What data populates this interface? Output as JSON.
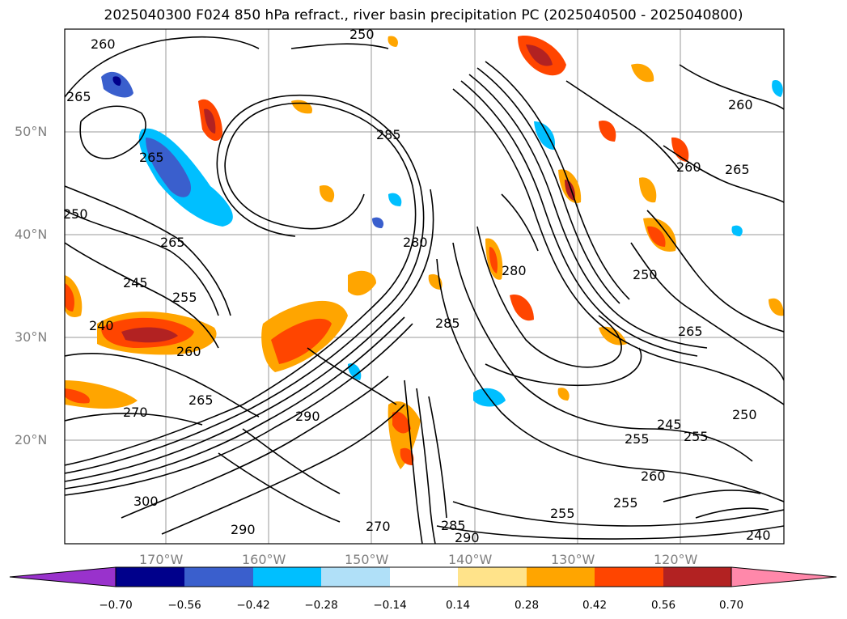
{
  "title": "2025040300 F024 850 hPa refract., river basin precipitation PC (2025040500 - 2025040800)",
  "axes": {
    "lat_labels": [
      "50°N",
      "40°N",
      "30°N",
      "20°N"
    ],
    "lon_labels": [
      "170°W",
      "160°W",
      "150°W",
      "140°W",
      "130°W",
      "120°W"
    ],
    "label_color": "#808080"
  },
  "contour_labels": [
    "260",
    "265",
    "265",
    "250",
    "265",
    "245",
    "255",
    "240",
    "260",
    "270",
    "265",
    "285",
    "280",
    "285",
    "290",
    "280",
    "300",
    "270",
    "285",
    "255",
    "290",
    "260",
    "255",
    "250",
    "265",
    "255",
    "260",
    "265",
    "250",
    "240",
    "255",
    "245",
    "290",
    "260",
    "250"
  ],
  "colorbar": {
    "ticks": [
      "−0.70",
      "−0.56",
      "−0.42",
      "−0.28",
      "−0.14",
      "0.14",
      "0.28",
      "0.42",
      "0.56",
      "0.70"
    ],
    "colors": {
      "under": "#9932cc",
      "lt_-0.56": "#00008b",
      "lt_-0.42": "#3a5fcd",
      "lt_-0.28": "#00bfff",
      "lt_-0.14": "#b0e0f8",
      "neutral": "#ffffff",
      "gt_0.14": "#ffe38a",
      "gt_0.28": "#ffa500",
      "gt_0.42": "#ff4500",
      "gt_0.56": "#b22222",
      "over": "#ff88aa"
    }
  }
}
